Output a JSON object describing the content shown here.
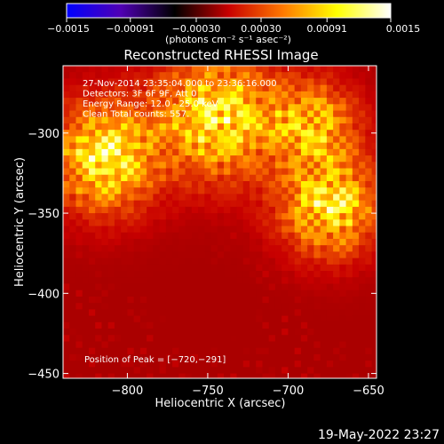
{
  "chart_data": {
    "type": "heatmap",
    "title": "Reconstructed RHESSI Image",
    "xlabel": "Heliocentric X (arcsec)",
    "ylabel": "Heliocentric Y (arcsec)",
    "xlim": [
      -840,
      -645
    ],
    "ylim": [
      -453,
      -258
    ],
    "x_ticks": [
      -800,
      -750,
      -700,
      -650
    ],
    "x_tick_labels": [
      "−800",
      "−750",
      "−700",
      "−650"
    ],
    "y_ticks": [
      -300,
      -350,
      -400,
      -450
    ],
    "y_tick_labels": [
      "−300",
      "−350",
      "−400",
      "−450"
    ],
    "colorbar": {
      "range": [
        -0.0015,
        0.0015
      ],
      "ticks": [
        -0.0015,
        -0.00091,
        -0.0003,
        0.0003,
        0.00091,
        0.0015
      ],
      "tick_labels": [
        "−0.0015",
        "−0.00091",
        "−0.00030",
        "0.00030",
        "0.00091",
        "0.0015"
      ],
      "units_label": "(photons cm⁻² s⁻¹ asec⁻²)",
      "colormap": [
        "#0000ff",
        "#5000b4",
        "#000000",
        "#c80000",
        "#ff7800",
        "#ffff00",
        "#ffffff"
      ]
    },
    "annotations": [
      "27-Nov-2014 23:35:04.000 to 23:36:16.000",
      "Detectors: 3F 6F 9F, Att 0",
      "Energy Range: 12.0 - 25.0 keV",
      "Clean     Total counts: 557."
    ],
    "peak_label": "Position of Peak = [−720,−291]",
    "peak": {
      "x": -720,
      "y": -291
    },
    "bright_regions": [
      {
        "x": -815,
        "y": -315,
        "sigma": 22,
        "amp": 1.0
      },
      {
        "x": -745,
        "y": -290,
        "sigma": 25,
        "amp": 1.0
      },
      {
        "x": -675,
        "y": -345,
        "sigma": 20,
        "amp": 1.0
      },
      {
        "x": -685,
        "y": -295,
        "sigma": 18,
        "amp": 0.8
      }
    ],
    "dim_regions": [
      {
        "x": -790,
        "y": -370,
        "sigma": 18,
        "amp": 0.6
      },
      {
        "x": -750,
        "y": -410,
        "sigma": 16,
        "amp": 0.6
      },
      {
        "x": -660,
        "y": -410,
        "sigma": 15,
        "amp": 0.4
      }
    ],
    "pixel_size_arcsec": 4
  },
  "footer_date": "19-May-2022 23:27"
}
